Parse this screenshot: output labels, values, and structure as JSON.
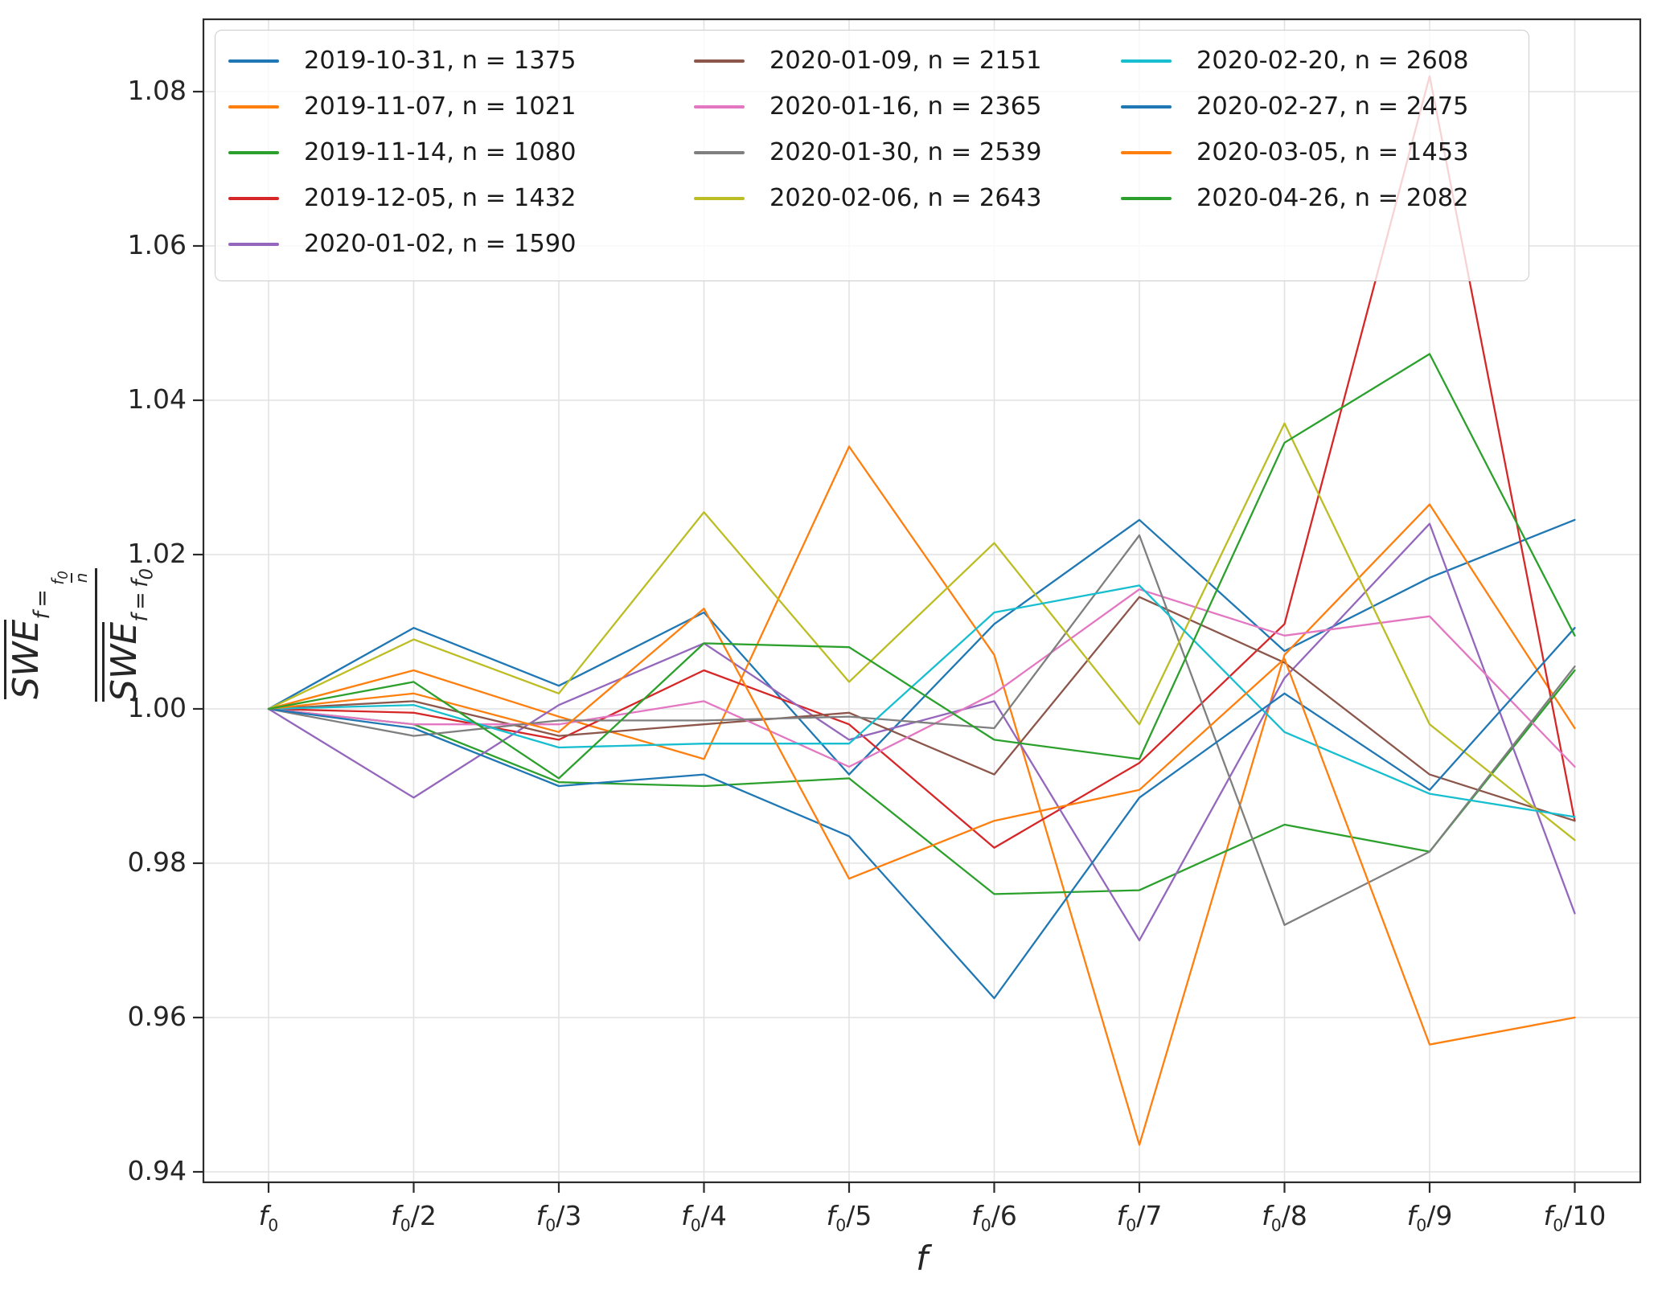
{
  "figure": {
    "background": "#ffffff",
    "grid_color": "#e2e2e2",
    "spine_color": "#2b2b2b",
    "tick_color": "#2b2b2b",
    "text_color": "#262626"
  },
  "axes": {
    "xlabel": "f",
    "x_tick_labels": [
      "f_0",
      "f_0/2",
      "f_0/3",
      "f_0/4",
      "f_0/5",
      "f_0/6",
      "f_0/7",
      "f_0/8",
      "f_0/9",
      "f_0/10"
    ],
    "y_tick_labels": [
      "0.94",
      "0.96",
      "0.98",
      "1.00",
      "1.02",
      "1.04",
      "1.06",
      "1.08"
    ],
    "ylabel": {
      "numerator_base": "SWE",
      "numerator_sub_prefix": "f = ",
      "numerator_sub_frac_num": "f_0",
      "numerator_sub_frac_den": "n",
      "denominator_base": "SWE",
      "denominator_sub": "f = f_0"
    }
  },
  "chart_data": {
    "type": "line",
    "title": "",
    "xlabel": "f",
    "ylabel": "mean(SWE at f = f0/n) / mean(SWE at f = f0)",
    "x_categories": [
      "f_0",
      "f_0/2",
      "f_0/3",
      "f_0/4",
      "f_0/5",
      "f_0/6",
      "f_0/7",
      "f_0/8",
      "f_0/9",
      "f_0/10"
    ],
    "yticks": [
      0.94,
      0.96,
      0.98,
      1.0,
      1.02,
      1.04,
      1.06,
      1.08
    ],
    "ylim": [
      0.9366,
      1.0889
    ],
    "grid": true,
    "legend_position": "upper-left, 3 columns",
    "series": [
      {
        "label": "2019-10-31, n = 1375",
        "color": "#1f77b4",
        "values": [
          1.0,
          1.0105,
          1.003,
          1.0125,
          0.9915,
          1.011,
          1.0245,
          1.0075,
          1.017,
          1.0245
        ]
      },
      {
        "label": "2019-11-07, n = 1021",
        "color": "#ff7f0e",
        "values": [
          1.0,
          1.005,
          0.999,
          0.9935,
          1.034,
          1.007,
          0.9435,
          1.007,
          1.0265,
          0.9975
        ]
      },
      {
        "label": "2019-11-14, n = 1080",
        "color": "#2ca02c",
        "values": [
          1.0,
          0.998,
          0.9905,
          0.99,
          0.991,
          0.976,
          0.9765,
          0.985,
          0.9815,
          1.005
        ]
      },
      {
        "label": "2019-12-05, n = 1432",
        "color": "#d62728",
        "values": [
          1.0,
          0.9995,
          0.996,
          1.005,
          0.998,
          0.982,
          0.993,
          1.011,
          1.082,
          0.9855
        ]
      },
      {
        "label": "2020-01-02, n = 1590",
        "color": "#9467bd",
        "values": [
          1.0,
          0.9885,
          1.0005,
          1.0085,
          0.996,
          1.001,
          0.97,
          1.004,
          1.024,
          0.9735
        ]
      },
      {
        "label": "2020-01-09, n = 2151",
        "color": "#8c564b",
        "values": [
          1.0,
          1.001,
          0.9965,
          0.998,
          0.9995,
          0.9915,
          1.0145,
          1.006,
          0.9915,
          0.9855
        ]
      },
      {
        "label": "2020-01-16, n = 2365",
        "color": "#e377c2",
        "values": [
          1.0,
          0.998,
          0.998,
          1.001,
          0.9925,
          1.002,
          1.0155,
          1.0095,
          1.012,
          0.9925
        ]
      },
      {
        "label": "2020-01-30, n = 2539",
        "color": "#7f7f7f",
        "values": [
          1.0,
          0.9965,
          0.9985,
          0.9985,
          0.999,
          0.9975,
          1.0225,
          0.972,
          0.9815,
          1.0055
        ]
      },
      {
        "label": "2020-02-06, n = 2643",
        "color": "#bcbd22",
        "values": [
          1.0,
          1.009,
          1.002,
          1.0255,
          1.0035,
          1.0215,
          0.998,
          1.037,
          0.998,
          0.983
        ]
      },
      {
        "label": "2020-02-20, n = 2608",
        "color": "#17becf",
        "values": [
          1.0,
          1.0005,
          0.995,
          0.9955,
          0.9955,
          1.0125,
          1.016,
          0.997,
          0.989,
          0.986
        ]
      },
      {
        "label": "2020-02-27, n = 2475",
        "color": "#1f77b4",
        "values": [
          1.0,
          0.9975,
          0.99,
          0.9915,
          0.9835,
          0.9625,
          0.9885,
          1.002,
          0.9895,
          1.0105
        ]
      },
      {
        "label": "2020-03-05, n = 1453",
        "color": "#ff7f0e",
        "values": [
          1.0,
          1.002,
          0.997,
          1.013,
          0.978,
          0.9855,
          0.9895,
          1.0065,
          0.9565,
          0.96
        ]
      },
      {
        "label": "2020-04-26, n = 2082",
        "color": "#2ca02c",
        "values": [
          1.0,
          1.0035,
          0.991,
          1.0085,
          1.008,
          0.996,
          0.9935,
          1.0345,
          1.046,
          1.0095
        ]
      }
    ],
    "legend_columns": [
      [
        0,
        1,
        2,
        3,
        4
      ],
      [
        5,
        6,
        7,
        8
      ],
      [
        9,
        10,
        11,
        12
      ]
    ]
  }
}
